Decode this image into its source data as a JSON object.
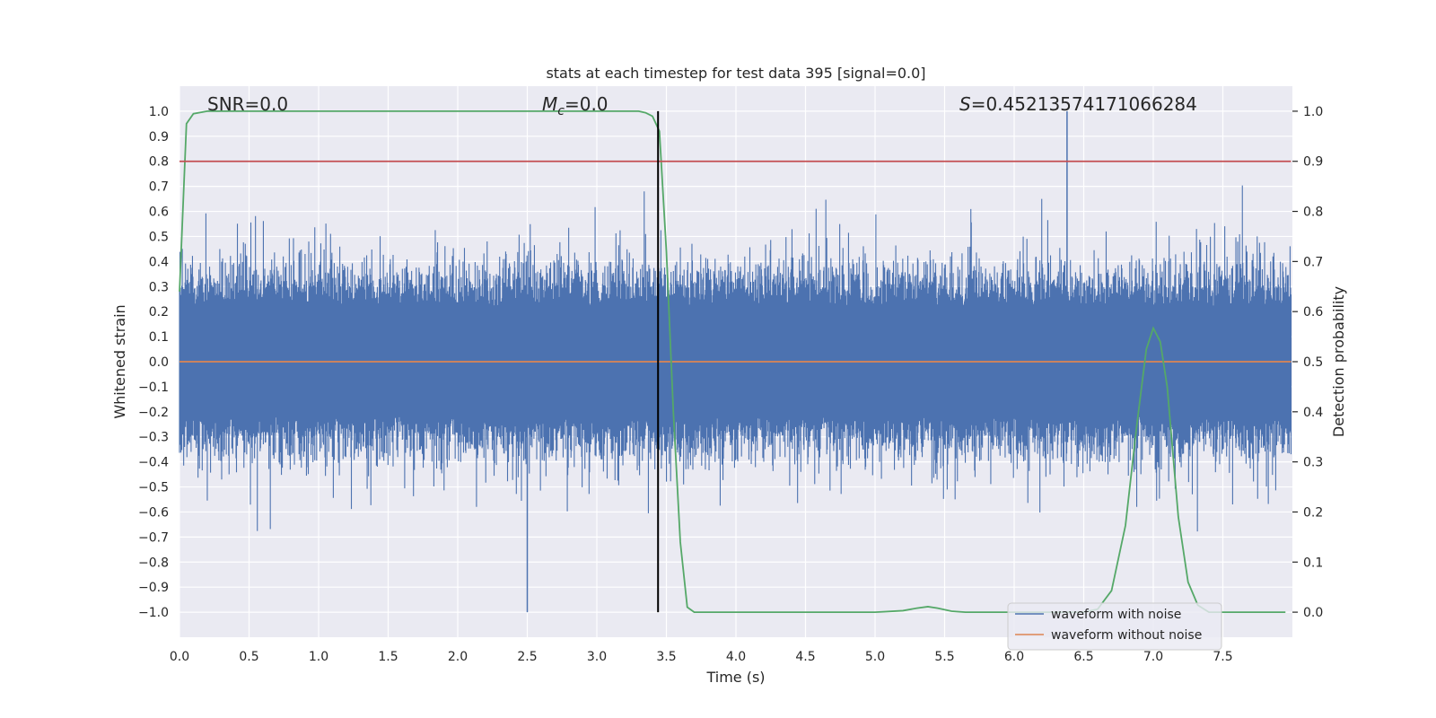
{
  "chart_data": {
    "type": "line",
    "title": "stats at each timestep for test data 395 [signal=0.0]",
    "xlabel": "Time (s)",
    "ylabel": "Whitened strain",
    "y2label": "Detection probability",
    "xlim": [
      0.0,
      8.0
    ],
    "ylim": [
      -1.1,
      1.1
    ],
    "y2lim": [
      -0.05,
      1.05
    ],
    "xticks": [
      0.0,
      0.5,
      1.0,
      1.5,
      2.0,
      2.5,
      3.0,
      3.5,
      4.0,
      4.5,
      5.0,
      5.5,
      6.0,
      6.5,
      7.0,
      7.5
    ],
    "xtick_labels": [
      "0.0",
      "0.5",
      "1.0",
      "1.5",
      "2.0",
      "2.5",
      "3.0",
      "3.5",
      "4.0",
      "4.5",
      "5.0",
      "5.5",
      "6.0",
      "6.5",
      "7.0",
      "7.5"
    ],
    "yticks": [
      -1.0,
      -0.9,
      -0.8,
      -0.7,
      -0.6,
      -0.5,
      -0.4,
      -0.3,
      -0.2,
      -0.1,
      0.0,
      0.1,
      0.2,
      0.3,
      0.4,
      0.5,
      0.6,
      0.7,
      0.8,
      0.9,
      1.0
    ],
    "ytick_labels": [
      "−1.0",
      "−0.9",
      "−0.8",
      "−0.7",
      "−0.6",
      "−0.5",
      "−0.4",
      "−0.3",
      "−0.2",
      "−0.1",
      "0.0",
      "0.1",
      "0.2",
      "0.3",
      "0.4",
      "0.5",
      "0.6",
      "0.7",
      "0.8",
      "0.9",
      "1.0"
    ],
    "y2ticks": [
      0.0,
      0.1,
      0.2,
      0.3,
      0.4,
      0.5,
      0.6,
      0.7,
      0.8,
      0.9,
      1.0
    ],
    "y2tick_labels": [
      "0.0",
      "0.1",
      "0.2",
      "0.3",
      "0.4",
      "0.5",
      "0.6",
      "0.7",
      "0.8",
      "0.9",
      "1.0"
    ],
    "grid": true,
    "legend": "lower-right",
    "annotations": {
      "snr": "SNR=0.0",
      "mc_symbol": "M",
      "mc_subscript": "c",
      "mc_value": "=0.0",
      "s_symbol": "S",
      "s_value": "=0.45213574171066284"
    },
    "series": [
      {
        "name": "waveform with noise",
        "color": "#4c72b0",
        "axis": "left",
        "style": "dense-noise",
        "x_range": [
          0.0,
          7.99
        ],
        "typical_amplitude": 0.4,
        "peak_max": 1.0,
        "peak_min": -1.0
      },
      {
        "name": "waveform without noise",
        "color": "#dd8452",
        "axis": "left",
        "x": [
          0.0,
          7.99
        ],
        "y": [
          0.0,
          0.0
        ]
      },
      {
        "color": "#55a868",
        "axis": "right",
        "x": [
          0.0,
          0.05,
          0.1,
          0.2,
          0.5,
          1.0,
          1.5,
          2.0,
          2.5,
          3.0,
          3.2,
          3.3,
          3.35,
          3.4,
          3.45,
          3.5,
          3.55,
          3.6,
          3.65,
          3.7,
          3.8,
          4.0,
          4.5,
          5.0,
          5.2,
          5.3,
          5.38,
          5.45,
          5.55,
          5.65,
          5.8,
          6.0,
          6.3,
          6.5,
          6.6,
          6.7,
          6.8,
          6.88,
          6.95,
          7.0,
          7.05,
          7.1,
          7.18,
          7.25,
          7.32,
          7.4,
          7.5,
          7.7,
          7.95
        ],
        "y": [
          0.64,
          0.975,
          0.995,
          1.0,
          1.0,
          1.0,
          1.0,
          1.0,
          1.0,
          1.0,
          1.0,
          1.0,
          0.997,
          0.99,
          0.96,
          0.72,
          0.4,
          0.14,
          0.01,
          0.0,
          0.0,
          0.0,
          0.0,
          0.0,
          0.003,
          0.008,
          0.011,
          0.008,
          0.002,
          0.0,
          0.0,
          0.0,
          0.0,
          0.0,
          0.006,
          0.043,
          0.173,
          0.37,
          0.525,
          0.567,
          0.54,
          0.45,
          0.19,
          0.06,
          0.014,
          0.0,
          0.0,
          0.0,
          0.0
        ]
      },
      {
        "color": "#c44e52",
        "axis": "left",
        "x": [
          0.0,
          7.99
        ],
        "y": [
          0.8,
          0.8
        ]
      },
      {
        "color": "#000000",
        "axis": "left",
        "x": [
          3.44,
          3.44
        ],
        "y": [
          -1.0,
          1.0
        ]
      }
    ]
  }
}
